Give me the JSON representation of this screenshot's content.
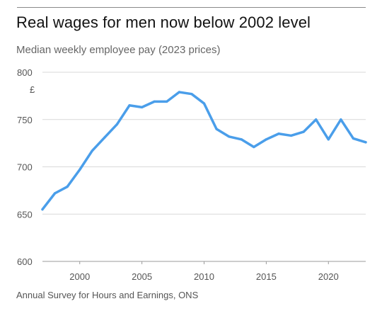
{
  "header": {
    "title": "Real wages for men now below 2002 level",
    "subtitle": "Median weekly employee pay (2023 prices)"
  },
  "footer": {
    "source": "Annual Survey for Hours and Earnings, ONS"
  },
  "colors": {
    "line": "#4a9eea",
    "grid": "#d9d9d9",
    "baseline": "#9b9b9b"
  },
  "chart_data": {
    "type": "line",
    "title": "Real wages for men now below 2002 level",
    "subtitle": "Median weekly employee pay (2023 prices)",
    "xlabel": "",
    "ylabel": "",
    "y_unit": "£",
    "x_ticks": [
      2000,
      2005,
      2010,
      2015,
      2020
    ],
    "y_ticks": [
      600,
      650,
      700,
      750,
      800
    ],
    "xlim": [
      1997,
      2023
    ],
    "ylim": [
      600,
      800
    ],
    "grid": true,
    "series": [
      {
        "x": [
          1997,
          1998,
          1999,
          2000,
          2001,
          2002,
          2003,
          2004,
          2005,
          2006,
          2007,
          2008,
          2009,
          2010,
          2011,
          2012,
          2013,
          2014,
          2015,
          2016,
          2017,
          2018,
          2019,
          2020,
          2021,
          2022,
          2023
        ],
        "values": [
          655,
          672,
          679,
          697,
          717,
          731,
          745,
          765,
          763,
          769,
          769,
          779,
          777,
          767,
          740,
          732,
          729,
          721,
          729,
          735,
          733,
          737,
          750,
          729,
          750,
          730,
          726
        ]
      }
    ]
  }
}
